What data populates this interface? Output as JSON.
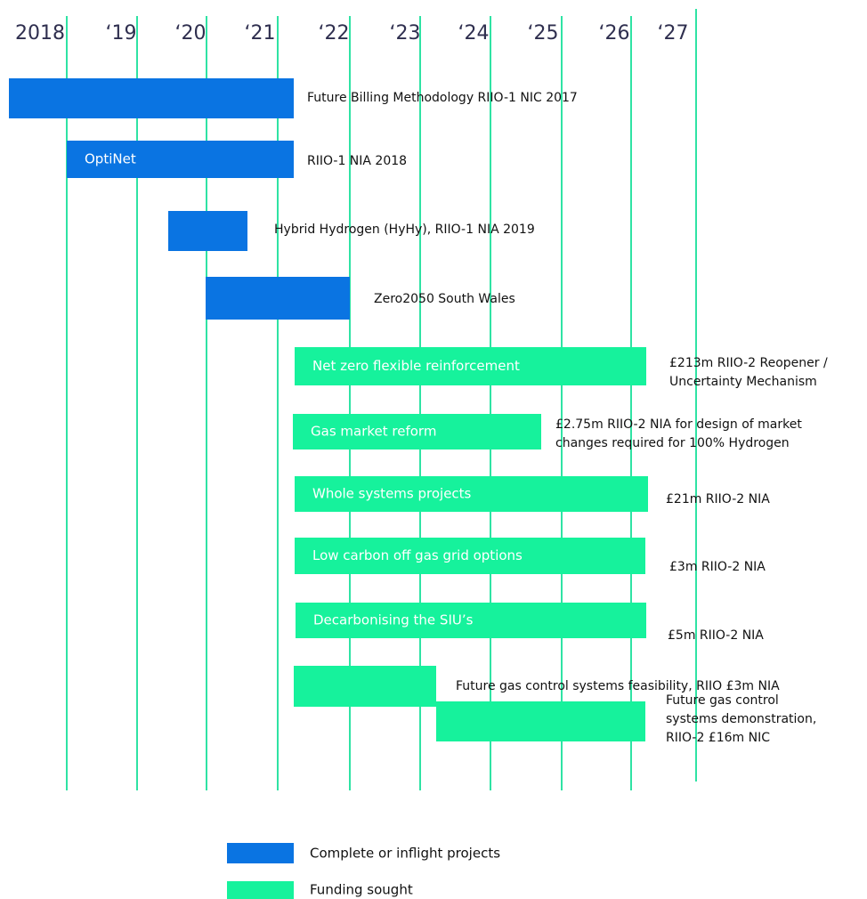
{
  "years": [
    "2018",
    "‘19",
    "‘20",
    "‘21",
    "‘22",
    "‘23",
    "‘24",
    "‘25",
    "‘26",
    "‘27"
  ],
  "bars": [
    {
      "label": null,
      "note": [
        "Future Billing Methodology RIIO-1 NIC 2017"
      ]
    },
    {
      "label": "OptiNet",
      "note": [
        "RIIO-1 NIA 2018"
      ]
    },
    {
      "label": null,
      "note": [
        "Hybrid Hydrogen (HyHy), RIIO-1 NIA 2019"
      ]
    },
    {
      "label": null,
      "note": [
        "Zero2050 South Wales"
      ]
    },
    {
      "label": "Net zero flexible reinforcement",
      "note": [
        "£213m RIIO-2 Reopener /",
        "Uncertainty Mechanism"
      ]
    },
    {
      "label": "Gas market reform",
      "note": [
        "£2.75m RIIO-2 NIA for design of market",
        "changes required for 100% Hydrogen"
      ]
    },
    {
      "label": "Whole systems projects",
      "note": [
        "£21m RIIO-2 NIA"
      ]
    },
    {
      "label": "Low carbon off gas grid options",
      "note": [
        "£3m RIIO-2 NIA"
      ]
    },
    {
      "label": "Decarbonising the SIU’s",
      "note": [
        "£5m RIIO-2 NIA"
      ]
    },
    {
      "label": null,
      "note": [
        "Future gas control systems feasibility, RIIO £3m NIA"
      ]
    },
    {
      "label": null,
      "note": [
        "Future gas control",
        "systems demonstration,",
        "RIIO-2 £16m NIC"
      ]
    }
  ],
  "legend": [
    "Complete or inflight projects",
    "Funding sought"
  ]
}
